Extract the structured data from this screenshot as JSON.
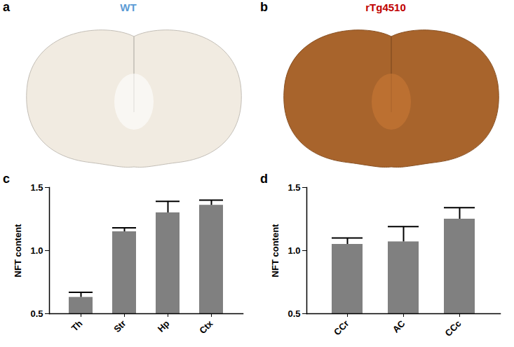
{
  "chart_data": [
    {
      "type": "image",
      "title": "WT",
      "annotations": [
        "a"
      ],
      "colors": [
        "#5b9bd5",
        "#f1ebe1"
      ]
    },
    {
      "type": "image",
      "title": "rTg4510",
      "annotations": [
        "b"
      ],
      "colors": [
        "#c00000",
        "#a8642c"
      ]
    },
    {
      "type": "bar",
      "annotations": [
        "c"
      ],
      "y_label": "NFT content",
      "categories": [
        "Th",
        "Str",
        "Hp",
        "Ctx"
      ],
      "values": [
        0.63,
        1.15,
        1.3,
        1.36
      ],
      "errors": [
        0.04,
        0.03,
        0.09,
        0.04
      ],
      "color": "#808080",
      "ylim": [
        0.5,
        1.5
      ],
      "yticks": [
        0.5,
        {
          "value": 1,
          "label": "1.0"
        },
        1.5
      ]
    },
    {
      "type": "bar",
      "annotations": [
        "d"
      ],
      "y_label": "NFT content",
      "categories": [
        "CCr",
        "AC",
        "CCc"
      ],
      "values": [
        1.05,
        1.07,
        1.25
      ],
      "errors": [
        0.05,
        0.12,
        0.09
      ],
      "color": "#808080",
      "ylim": [
        0.5,
        1.5
      ],
      "yticks": [
        0.5,
        {
          "value": 1,
          "label": "1.0"
        },
        1.5
      ]
    }
  ]
}
